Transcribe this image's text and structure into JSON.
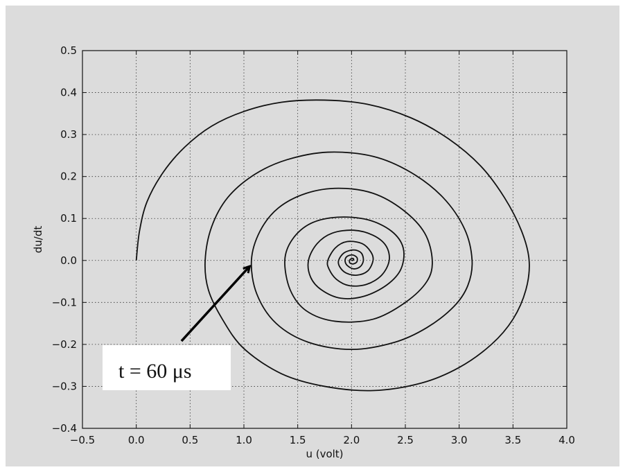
{
  "chart_data": {
    "type": "line",
    "title": "",
    "xlabel": "u (volt)",
    "ylabel": "du/dt",
    "xlim": [
      -0.5,
      4.0
    ],
    "ylim": [
      -0.4,
      0.5
    ],
    "xticks": [
      -0.5,
      0.0,
      0.5,
      1.0,
      1.5,
      2.0,
      2.5,
      3.0,
      3.5,
      4.0
    ],
    "yticks": [
      -0.4,
      -0.3,
      -0.2,
      -0.1,
      0.0,
      0.1,
      0.2,
      0.3,
      0.4,
      0.5
    ],
    "xtick_labels": [
      "−0.5",
      "0.0",
      "0.5",
      "1.0",
      "1.5",
      "2.0",
      "2.5",
      "3.0",
      "3.5",
      "4.0"
    ],
    "ytick_labels": [
      "−0.4",
      "−0.3",
      "−0.2",
      "−0.1",
      "0.0",
      "0.1",
      "0.2",
      "0.3",
      "0.4",
      "0.5"
    ],
    "grid": true,
    "line_color": "#111111",
    "background_color": "#dcdcdc",
    "series": [
      {
        "x": [
          0.0,
          0.03,
          0.1,
          0.25,
          0.45,
          0.7,
          1.0,
          1.35,
          1.75,
          2.15,
          2.55,
          2.9,
          3.2,
          3.42,
          3.58,
          3.65,
          3.62,
          3.5,
          3.3,
          3.0,
          2.65,
          2.2,
          1.75,
          1.35,
          1.0,
          0.8,
          0.67,
          0.64,
          0.7,
          0.85,
          1.1,
          1.4,
          1.78,
          2.2,
          2.55,
          2.85,
          3.05,
          3.12,
          3.08,
          2.95,
          2.7,
          2.4,
          2.0,
          1.6,
          1.3,
          1.12,
          1.07,
          1.15,
          1.32,
          1.58,
          1.88,
          2.2,
          2.48,
          2.68,
          2.75,
          2.7,
          2.5,
          2.2,
          1.85,
          1.58,
          1.43,
          1.38,
          1.45,
          1.62,
          1.87,
          2.15,
          2.37,
          2.48,
          2.46,
          2.33,
          2.12,
          1.9,
          1.72,
          1.62,
          1.6,
          1.68,
          1.82,
          2.02,
          2.2,
          2.32,
          2.35,
          2.28,
          2.14,
          1.98,
          1.86,
          1.79,
          1.78,
          1.85,
          1.96,
          2.1,
          2.18,
          2.2,
          2.15,
          2.05,
          1.95,
          1.89,
          1.88,
          1.93,
          2.02,
          2.09,
          2.11,
          2.08,
          2.02,
          1.96,
          1.94,
          1.96,
          2.01,
          2.05,
          2.05,
          2.02,
          1.99,
          1.98,
          1.99,
          2.01,
          2.02,
          2.01,
          2.0
        ],
        "y": [
          0.0,
          0.07,
          0.14,
          0.21,
          0.27,
          0.32,
          0.355,
          0.377,
          0.382,
          0.372,
          0.34,
          0.29,
          0.225,
          0.15,
          0.07,
          0.0,
          -0.07,
          -0.14,
          -0.2,
          -0.255,
          -0.292,
          -0.31,
          -0.3,
          -0.27,
          -0.21,
          -0.14,
          -0.07,
          0.0,
          0.08,
          0.15,
          0.205,
          0.24,
          0.258,
          0.248,
          0.21,
          0.15,
          0.075,
          0.0,
          -0.06,
          -0.11,
          -0.16,
          -0.195,
          -0.212,
          -0.195,
          -0.15,
          -0.08,
          0.0,
          0.07,
          0.125,
          0.16,
          0.172,
          0.16,
          0.12,
          0.065,
          0.0,
          -0.05,
          -0.1,
          -0.14,
          -0.145,
          -0.12,
          -0.07,
          0.0,
          0.05,
          0.088,
          0.103,
          0.097,
          0.07,
          0.03,
          -0.02,
          -0.058,
          -0.085,
          -0.09,
          -0.07,
          -0.04,
          0.0,
          0.04,
          0.065,
          0.072,
          0.06,
          0.035,
          0.0,
          -0.035,
          -0.057,
          -0.06,
          -0.045,
          -0.02,
          0.0,
          0.03,
          0.045,
          0.04,
          0.02,
          0.0,
          -0.025,
          -0.035,
          -0.03,
          -0.015,
          0.0,
          0.018,
          0.025,
          0.018,
          0.0,
          -0.015,
          -0.02,
          -0.012,
          0.0,
          0.01,
          0.013,
          0.007,
          -0.003,
          -0.008,
          -0.007,
          -0.002,
          0.003,
          0.005,
          0.003,
          0.0,
          0.0
        ]
      }
    ],
    "annotation": {
      "text": "t = 60 μs",
      "arrow_from": [
        0.42,
        -0.192
      ],
      "arrow_to": [
        1.05,
        -0.015
      ]
    }
  }
}
